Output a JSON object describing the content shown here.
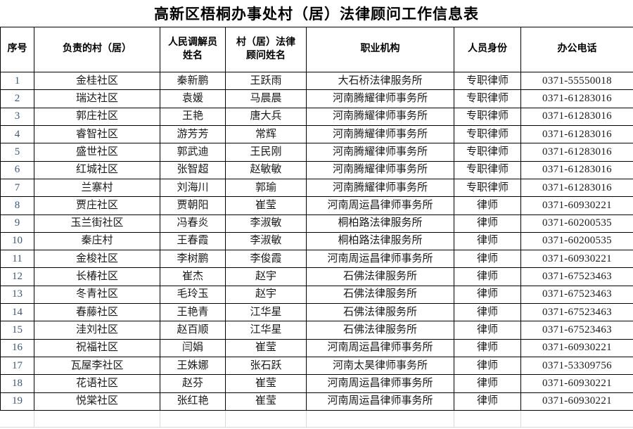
{
  "title": "高新区梧桐办事处村（居）法律顾问工作信息表",
  "colors": {
    "border": "#000000",
    "serial_text": "#3f5676",
    "grid_light": "#d9d9d9"
  },
  "table": {
    "columns": [
      "序号",
      "负责的村（居）",
      "人民调解员\n姓名",
      "村（居）法律\n顾问姓名",
      "职业机构",
      "人员身份",
      "办公电话"
    ],
    "rows": [
      [
        "1",
        "金桂社区",
        "秦新鹏",
        "王跃雨",
        "大石桥法律服务所",
        "专职律师",
        "0371-55550018"
      ],
      [
        "2",
        "瑞达社区",
        "袁媛",
        "马晨晨",
        "河南腾耀律师事务所",
        "专职律师",
        "0371-61283016"
      ],
      [
        "3",
        "郭庄社区",
        "王艳",
        "唐大兵",
        "河南腾耀律师事务所",
        "专职律师",
        "0371-61283016"
      ],
      [
        "4",
        "睿智社区",
        "游芳芳",
        "常辉",
        "河南腾耀律师事务所",
        "专职律师",
        "0371-61283016"
      ],
      [
        "5",
        "盛世社区",
        "郭武迪",
        "王民刚",
        "河南腾耀律师事务所",
        "专职律师",
        "0371-61283016"
      ],
      [
        "6",
        "红城社区",
        "张智超",
        "赵敏敏",
        "河南腾耀律师事务所",
        "专职律师",
        "0371-61283016"
      ],
      [
        "7",
        "兰寨村",
        "刘海川",
        "郭瑜",
        "河南腾耀律师事务所",
        "专职律师",
        "0371-61283016"
      ],
      [
        "8",
        "贾庄社区",
        "贾朝阳",
        "崔莹",
        "河南周运昌律师事务所",
        "律师",
        "0371-60930221"
      ],
      [
        "9",
        "玉兰街社区",
        "冯春炎",
        "李淑敏",
        "桐柏路法律服务所",
        "律师",
        "0371-60200535"
      ],
      [
        "10",
        "秦庄村",
        "王春霞",
        "李淑敏",
        "桐柏路法律服务所",
        "律师",
        "0371-60200535"
      ],
      [
        "11",
        "金梭社区",
        "李树鹏",
        "李俊霞",
        "河南周运昌律师事务所",
        "律师",
        "0371-60930221"
      ],
      [
        "12",
        "长椿社区",
        "崔杰",
        "赵宇",
        "石佛法律服务所",
        "律师",
        "0371-67523463"
      ],
      [
        "13",
        "冬青社区",
        "毛玲玉",
        "赵宇",
        "石佛法律服务所",
        "律师",
        "0371-67523463"
      ],
      [
        "14",
        "春藤社区",
        "王艳青",
        "江华星",
        "石佛法律服务所",
        "律师",
        "0371-67523463"
      ],
      [
        "15",
        "洼刘社区",
        "赵百顺",
        "江华星",
        "石佛法律服务所",
        "律师",
        "0371-67523463"
      ],
      [
        "16",
        "祝福社区",
        "闫娟",
        "崔莹",
        "河南周运昌律师事务所",
        "律师",
        "0371-60930221"
      ],
      [
        "17",
        "瓦屋李社区",
        "王姝娜",
        "张石跃",
        "河南太昊律师事务所",
        "律师",
        "0371-53309756"
      ],
      [
        "18",
        "花语社区",
        "赵芬",
        "崔莹",
        "河南周运昌律师事务所",
        "律师",
        "0371-60930221"
      ],
      [
        "19",
        "悦棠社区",
        "张红艳",
        "崔莹",
        "河南周运昌律师事务所",
        "律师",
        "0371-60930221"
      ]
    ]
  }
}
